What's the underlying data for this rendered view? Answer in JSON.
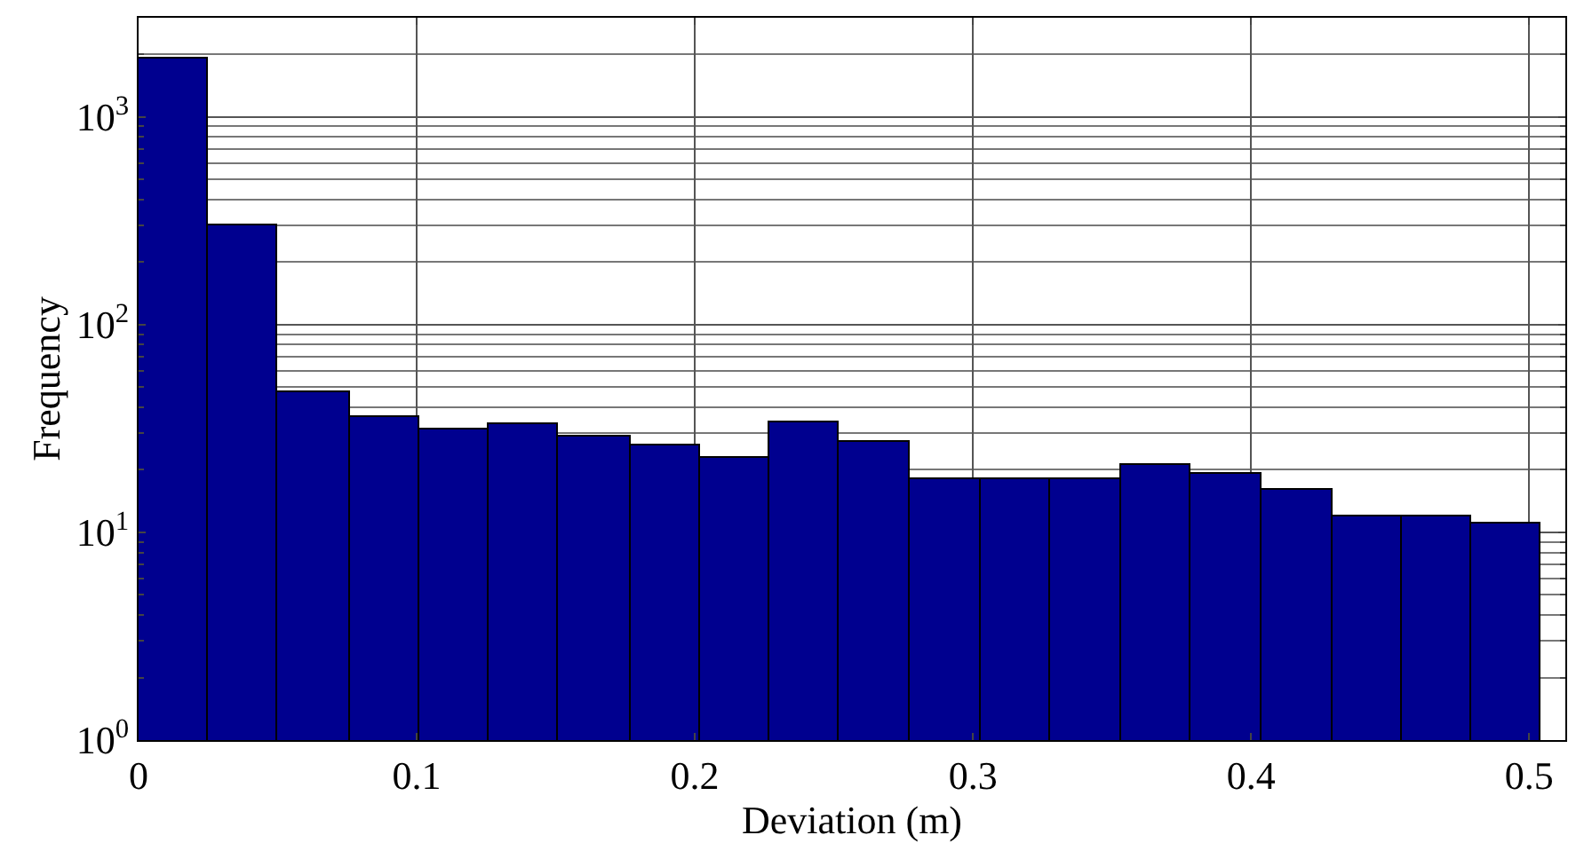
{
  "chart_data": {
    "type": "histogram",
    "xlabel": "Deviation (m)",
    "ylabel": "Frequency",
    "bins": [
      0,
      0.025,
      0.05,
      0.076,
      0.101,
      0.126,
      0.151,
      0.177,
      0.202,
      0.227,
      0.252,
      0.277,
      0.303,
      0.328,
      0.353,
      0.378,
      0.404,
      0.429,
      0.454,
      0.479,
      0.504
    ],
    "values": [
      1900,
      300,
      47,
      36,
      31,
      33,
      29,
      26,
      23,
      34,
      27,
      18,
      18,
      18,
      21,
      19,
      16,
      12,
      12,
      11
    ],
    "color": "#00008f",
    "xlim": [
      0,
      0.513
    ],
    "xticks": [
      0,
      0.1,
      0.2,
      0.3,
      0.4,
      0.5
    ],
    "ylim": [
      1,
      3000
    ],
    "yticks": [
      {
        "value": 1,
        "label": "10$^{0}$"
      },
      {
        "value": 10,
        "label": "10$^{1}$"
      },
      {
        "value": 100,
        "label": "10$^{2}$"
      },
      {
        "value": 1000,
        "label": "10$^{3}$"
      }
    ],
    "log": "y",
    "grid": true
  }
}
